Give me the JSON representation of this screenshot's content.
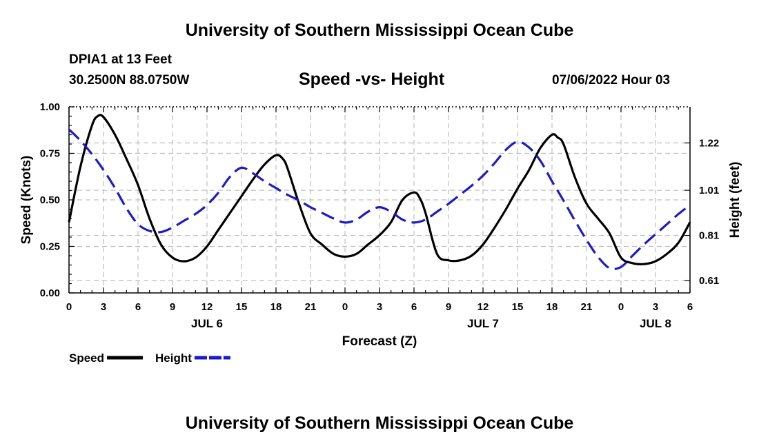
{
  "header": {
    "title": "University of Southern Mississippi Ocean Cube",
    "station": "DPIA1 at 13 Feet",
    "coords": "30.2500N  88.0750W",
    "subtitle": "Speed -vs- Height",
    "datetime": "07/06/2022 Hour 03"
  },
  "footer": {
    "title": "University of Southern Mississippi Ocean Cube"
  },
  "chart_data": {
    "type": "line",
    "title": "Speed -vs- Height",
    "xlabel": "Forecast (Z)",
    "ylabel": "Speed (Knots)",
    "y2label": "Height (feet)",
    "x_range_hours": [
      0,
      54
    ],
    "x_tick_hours": [
      0,
      3,
      6,
      9,
      12,
      15,
      18,
      21,
      24,
      27,
      30,
      33,
      36,
      39,
      42,
      45,
      48,
      51,
      54
    ],
    "x_tick_labels": [
      "0",
      "3",
      "6",
      "9",
      "12",
      "15",
      "18",
      "21",
      "0",
      "3",
      "6",
      "9",
      "12",
      "15",
      "18",
      "21",
      "0",
      "3",
      "6"
    ],
    "date_labels": [
      {
        "hour": 12,
        "label": "JUL 6"
      },
      {
        "hour": 36,
        "label": "JUL 7"
      },
      {
        "hour": 51,
        "label": "JUL 8"
      }
    ],
    "y_left": {
      "range": [
        0,
        1
      ],
      "ticks": [
        0,
        0.25,
        0.5,
        0.75,
        1.0
      ],
      "tick_labels": [
        "0.00",
        "0.25",
        "0.50",
        "0.75",
        "1.00"
      ]
    },
    "y_right": {
      "range": [
        0.555,
        1.38
      ],
      "ticks": [
        0.61,
        0.81,
        1.01,
        1.22
      ],
      "tick_labels": [
        "0.61",
        "0.81",
        "1.01",
        "1.22"
      ]
    },
    "legend": [
      {
        "name": "Speed",
        "color": "#000000",
        "dashed": false
      },
      {
        "name": "Height",
        "color": "#1a1acc",
        "dashed": true
      }
    ],
    "series": [
      {
        "name": "Speed",
        "axis": "left",
        "color": "#000000",
        "points": [
          [
            0,
            0.38
          ],
          [
            1,
            0.68
          ],
          [
            2,
            0.9
          ],
          [
            2.5,
            0.95
          ],
          [
            3,
            0.945
          ],
          [
            4,
            0.85
          ],
          [
            5,
            0.72
          ],
          [
            6,
            0.58
          ],
          [
            7,
            0.4
          ],
          [
            8,
            0.26
          ],
          [
            9,
            0.19
          ],
          [
            10,
            0.17
          ],
          [
            11,
            0.19
          ],
          [
            12,
            0.25
          ],
          [
            13,
            0.34
          ],
          [
            14,
            0.43
          ],
          [
            15,
            0.52
          ],
          [
            16,
            0.61
          ],
          [
            17,
            0.69
          ],
          [
            18,
            0.74
          ],
          [
            18.6,
            0.72
          ],
          [
            19,
            0.67
          ],
          [
            20,
            0.48
          ],
          [
            21,
            0.32
          ],
          [
            22,
            0.26
          ],
          [
            23,
            0.21
          ],
          [
            24,
            0.195
          ],
          [
            25,
            0.21
          ],
          [
            26,
            0.26
          ],
          [
            27,
            0.31
          ],
          [
            28,
            0.38
          ],
          [
            29,
            0.5
          ],
          [
            30,
            0.54
          ],
          [
            30.5,
            0.51
          ],
          [
            31,
            0.43
          ],
          [
            32,
            0.21
          ],
          [
            33,
            0.175
          ],
          [
            34,
            0.175
          ],
          [
            35,
            0.2
          ],
          [
            36,
            0.26
          ],
          [
            37,
            0.35
          ],
          [
            38,
            0.45
          ],
          [
            39,
            0.56
          ],
          [
            40,
            0.66
          ],
          [
            41,
            0.78
          ],
          [
            42,
            0.85
          ],
          [
            42.5,
            0.835
          ],
          [
            43,
            0.8
          ],
          [
            44,
            0.62
          ],
          [
            45,
            0.48
          ],
          [
            46,
            0.4
          ],
          [
            47,
            0.32
          ],
          [
            48,
            0.19
          ],
          [
            49,
            0.16
          ],
          [
            50,
            0.155
          ],
          [
            51,
            0.17
          ],
          [
            52,
            0.21
          ],
          [
            53,
            0.27
          ],
          [
            54,
            0.38
          ]
        ]
      },
      {
        "name": "Height",
        "axis": "right",
        "color": "#1a1acc",
        "points": [
          [
            0,
            1.28
          ],
          [
            1,
            1.23
          ],
          [
            2,
            1.17
          ],
          [
            3,
            1.1
          ],
          [
            4,
            1.02
          ],
          [
            5,
            0.93
          ],
          [
            6,
            0.86
          ],
          [
            7,
            0.83
          ],
          [
            8,
            0.825
          ],
          [
            9,
            0.845
          ],
          [
            10,
            0.875
          ],
          [
            11,
            0.905
          ],
          [
            12,
            0.945
          ],
          [
            13,
            1.0
          ],
          [
            14,
            1.07
          ],
          [
            15,
            1.11
          ],
          [
            16,
            1.085
          ],
          [
            17,
            1.05
          ],
          [
            18,
            1.02
          ],
          [
            19,
            0.99
          ],
          [
            20,
            0.965
          ],
          [
            21,
            0.935
          ],
          [
            22,
            0.91
          ],
          [
            23,
            0.885
          ],
          [
            24,
            0.867
          ],
          [
            25,
            0.88
          ],
          [
            26,
            0.915
          ],
          [
            27,
            0.935
          ],
          [
            28,
            0.915
          ],
          [
            29,
            0.88
          ],
          [
            30,
            0.867
          ],
          [
            31,
            0.88
          ],
          [
            32,
            0.915
          ],
          [
            33,
            0.95
          ],
          [
            34,
            0.99
          ],
          [
            35,
            1.03
          ],
          [
            36,
            1.075
          ],
          [
            37,
            1.13
          ],
          [
            38,
            1.19
          ],
          [
            39,
            1.225
          ],
          [
            40,
            1.2
          ],
          [
            41,
            1.14
          ],
          [
            42,
            1.05
          ],
          [
            43,
            0.965
          ],
          [
            44,
            0.875
          ],
          [
            45,
            0.79
          ],
          [
            46,
            0.715
          ],
          [
            47,
            0.665
          ],
          [
            48,
            0.67
          ],
          [
            49,
            0.72
          ],
          [
            50,
            0.77
          ],
          [
            51,
            0.815
          ],
          [
            52,
            0.86
          ],
          [
            53,
            0.905
          ],
          [
            54,
            0.945
          ]
        ]
      }
    ]
  }
}
